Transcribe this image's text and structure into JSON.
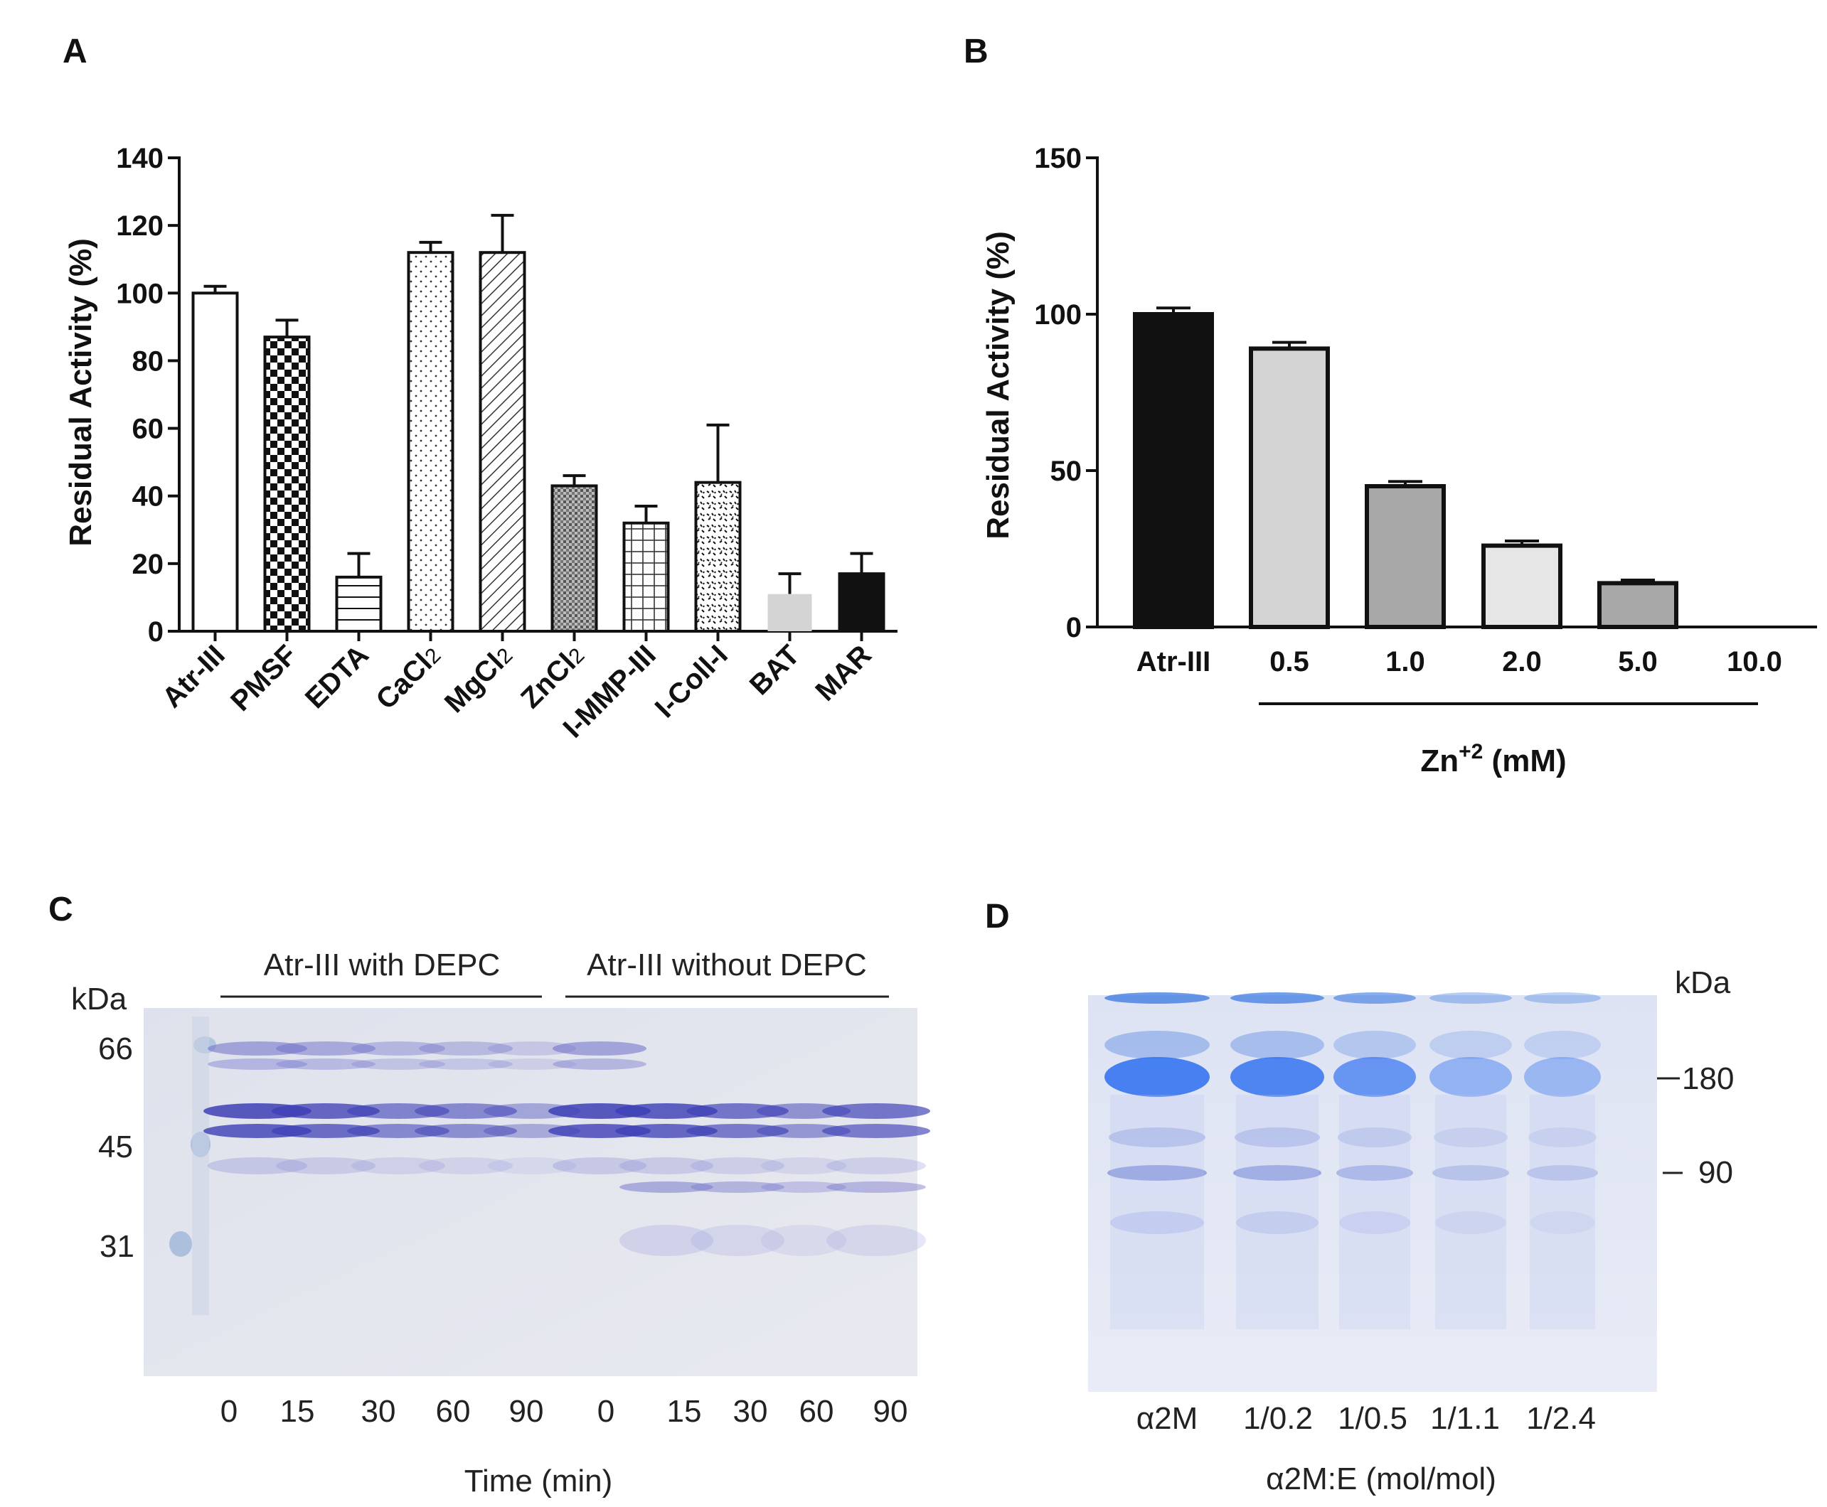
{
  "panels": {
    "A": {
      "label": "A"
    },
    "B": {
      "label": "B"
    },
    "C": {
      "label": "C"
    },
    "D": {
      "label": "D"
    }
  },
  "colors": {
    "ink": "#111111",
    "gray_light": "#d4d4d4",
    "gray_mid": "#a8a8a8",
    "gray_lightest": "#e6e6e6",
    "gel_blue": "#3b5fd6",
    "gel_bg": "#e3e6f2"
  },
  "chart_data": [
    {
      "panel": "A",
      "type": "bar",
      "title": "",
      "xlabel": "",
      "ylabel": "Residual Activity (%)",
      "ylim": [
        0,
        140
      ],
      "yticks": [
        0,
        20,
        40,
        60,
        80,
        100,
        120,
        140
      ],
      "categories": [
        "Atr-III",
        "PMSF",
        "EDTA",
        "CaCl2",
        "MgCl2",
        "ZnCl2",
        "I-MMP-III",
        "I-Coll-I",
        "BAT",
        "MAR"
      ],
      "values": [
        100,
        87,
        16,
        112,
        112,
        43,
        32,
        44,
        11,
        17
      ],
      "errors": [
        2,
        5,
        7,
        3,
        11,
        3,
        5,
        17,
        6,
        6
      ],
      "fills": [
        "white",
        "checker",
        "hlines",
        "dots",
        "diag",
        "crosshatch",
        "grid",
        "specks",
        "#d4d4d4",
        "#111111"
      ]
    },
    {
      "panel": "B",
      "type": "bar",
      "title": "",
      "ylabel": "Residual Activity (%)",
      "xlabel": "Zn+2 (mM)",
      "xlabel_base": "Zn",
      "xlabel_sup": "+2",
      "xlabel_unit": " (mM)",
      "ylim": [
        0,
        150
      ],
      "yticks": [
        0,
        50,
        100,
        150
      ],
      "categories": [
        "Atr-III",
        "0.5",
        "1.0",
        "2.0",
        "5.0",
        "10.0"
      ],
      "values": [
        100,
        89,
        45,
        26,
        14,
        0
      ],
      "errors": [
        2,
        2,
        1.5,
        1.5,
        1,
        0
      ],
      "fills": [
        "#111111",
        "#d4d4d4",
        "#a8a8a8",
        "#e6e6e6",
        "#a8a8a8",
        "#ffffff"
      ]
    }
  ],
  "gel_c": {
    "group1": "Atr-III with DEPC",
    "group2": "Atr-III without DEPC",
    "unit": "kDa",
    "markers": [
      "66",
      "45",
      "31"
    ],
    "lanes": [
      "0",
      "15",
      "30",
      "60",
      "90",
      "0",
      "15",
      "30",
      "60",
      "90"
    ],
    "xlabel": "Time (min)"
  },
  "gel_d": {
    "unit": "kDa",
    "markers": [
      "180",
      "90"
    ],
    "lanes": [
      "α2M",
      "1/0.2",
      "1/0.5",
      "1/1.1",
      "1/2.4"
    ],
    "xlabel": "α2M:E (mol/mol)"
  }
}
